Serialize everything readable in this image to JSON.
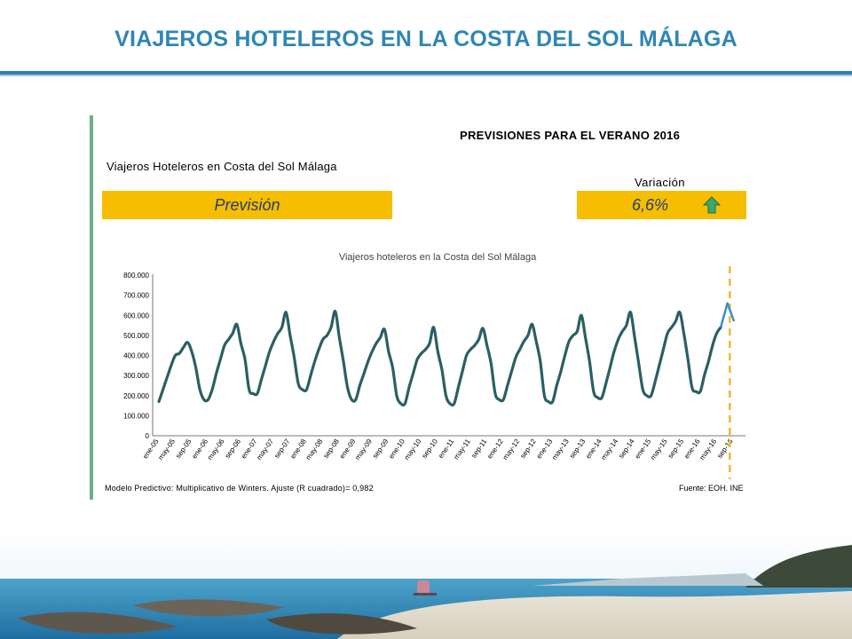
{
  "slide": {
    "title": "VIAJEROS HOTELEROS EN LA COSTA DEL SOL MÁLAGA"
  },
  "panel": {
    "forecast_heading": "PREVISIONES PARA EL VERANO 2016",
    "series_heading": "Viajeros Hoteleros en Costa del Sol Málaga",
    "variation_heading": "Variación",
    "forecast_label": "Previsión",
    "variation_value": "6,6%",
    "variation_icon": "up-arrow-icon",
    "box_color": "#f7bd00",
    "model_note": "Modelo Predictivo: Multiplicativo de Winters. Ajuste (R cuadrado)= 0,982",
    "source_note": "Fuente: EOH. INE"
  },
  "chart_data": {
    "type": "line",
    "title": "Viajeros hoteleros en la Costa del Sol Málaga",
    "xlabel": "",
    "ylabel": "",
    "ylim": [
      0,
      800000
    ],
    "yticks": [
      0,
      100000,
      200000,
      300000,
      400000,
      500000,
      600000,
      700000,
      800000
    ],
    "ytick_labels": [
      "0",
      "100.000",
      "200.000",
      "300.000",
      "400.000",
      "500.000",
      "600.000",
      "700.000",
      "800.000"
    ],
    "x_tick_labels": [
      "ene-05",
      "may-05",
      "sep-05",
      "ene-06",
      "may-06",
      "sep-06",
      "ene-07",
      "may-07",
      "sep-07",
      "ene-08",
      "may-08",
      "sep-08",
      "ene-09",
      "may-09",
      "sep-09",
      "ene-10",
      "may-10",
      "sep-10",
      "ene-11",
      "may-11",
      "sep-11",
      "ene-12",
      "may-12",
      "sep-12",
      "ene-13",
      "may-13",
      "sep-13",
      "ene-14",
      "may-14",
      "sep-14",
      "ene-15",
      "may-15",
      "sep-15",
      "ene-16",
      "may-16",
      "sep-16"
    ],
    "x_start": "2005-01",
    "series": [
      {
        "color": "#2b5f63",
        "values": [
          170000,
          230000,
          290000,
          350000,
          400000,
          410000,
          440000,
          465000,
          420000,
          340000,
          230000,
          180000,
          180000,
          230000,
          310000,
          380000,
          450000,
          480000,
          510000,
          555000,
          460000,
          380000,
          230000,
          210000,
          210000,
          280000,
          350000,
          420000,
          470000,
          510000,
          540000,
          615000,
          500000,
          390000,
          260000,
          230000,
          230000,
          300000,
          370000,
          430000,
          480000,
          500000,
          540000,
          620000,
          490000,
          370000,
          240000,
          180000,
          180000,
          250000,
          310000,
          370000,
          420000,
          460000,
          490000,
          530000,
          420000,
          340000,
          200000,
          160000,
          160000,
          240000,
          310000,
          380000,
          410000,
          430000,
          460000,
          540000,
          420000,
          330000,
          200000,
          160000,
          160000,
          240000,
          320000,
          400000,
          430000,
          450000,
          480000,
          535000,
          450000,
          360000,
          210000,
          180000,
          180000,
          250000,
          320000,
          390000,
          430000,
          470000,
          500000,
          555000,
          470000,
          370000,
          200000,
          170000,
          170000,
          250000,
          320000,
          400000,
          470000,
          500000,
          520000,
          600000,
          490000,
          370000,
          220000,
          190000,
          190000,
          260000,
          340000,
          420000,
          480000,
          520000,
          550000,
          615000,
          490000,
          360000,
          230000,
          200000,
          200000,
          270000,
          350000,
          430000,
          510000,
          540000,
          570000,
          615000,
          510000,
          380000,
          240000,
          220000,
          220000,
          300000,
          370000,
          450000,
          510000,
          540000
        ]
      }
    ],
    "forecast_marker": "sep-16",
    "forecast_marker_color": "#f2b632",
    "forecast_series": {
      "color": "#3a8fc0",
      "values": [
        540000,
        660000,
        570000
      ]
    }
  }
}
